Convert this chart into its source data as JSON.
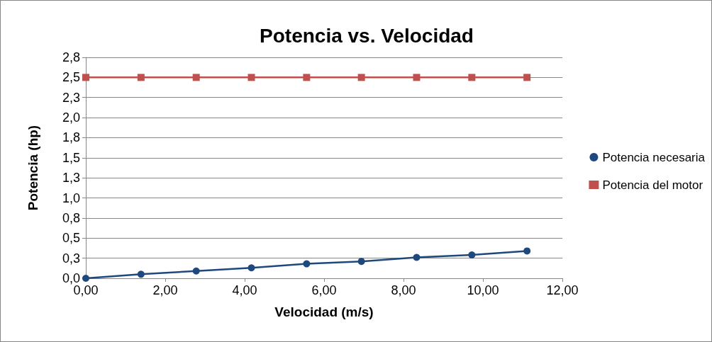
{
  "chart_data": {
    "type": "line",
    "title": "Potencia vs. Velocidad",
    "xlabel": "Velocidad (m/s)",
    "ylabel": "Potencia (hp)",
    "x": [
      0,
      1.39,
      2.78,
      4.17,
      5.56,
      6.94,
      8.33,
      9.72,
      11.11
    ],
    "series": [
      {
        "name": "Potencia necesaria",
        "color": "#1f497d",
        "marker": "circle",
        "values": [
          0,
          0.05,
          0.09,
          0.13,
          0.18,
          0.21,
          0.26,
          0.29,
          0.34
        ]
      },
      {
        "name": "Potencia del motor",
        "color": "#c0504d",
        "marker": "square",
        "values": [
          2.5,
          2.5,
          2.5,
          2.5,
          2.5,
          2.5,
          2.5,
          2.5,
          2.5
        ]
      }
    ],
    "xlim": [
      0,
      12
    ],
    "xticks": [
      {
        "value": 0,
        "label": "0,00"
      },
      {
        "value": 2,
        "label": "2,00"
      },
      {
        "value": 4,
        "label": "4,00"
      },
      {
        "value": 6,
        "label": "6,00"
      },
      {
        "value": 8,
        "label": "8,00"
      },
      {
        "value": 10,
        "label": "10,00"
      },
      {
        "value": 12,
        "label": "12,00"
      }
    ],
    "ylim": [
      0,
      2.75
    ],
    "yticks": [
      {
        "value": 0,
        "label": "0,0"
      },
      {
        "value": 0.25,
        "label": "0,3"
      },
      {
        "value": 0.5,
        "label": "0,5"
      },
      {
        "value": 0.75,
        "label": "0,8"
      },
      {
        "value": 1,
        "label": "1,0"
      },
      {
        "value": 1.25,
        "label": "1,3"
      },
      {
        "value": 1.5,
        "label": "1,5"
      },
      {
        "value": 1.75,
        "label": "1,8"
      },
      {
        "value": 2,
        "label": "2,0"
      },
      {
        "value": 2.25,
        "label": "2,3"
      },
      {
        "value": 2.5,
        "label": "2,5"
      },
      {
        "value": 2.75,
        "label": "2,8"
      }
    ],
    "grid": "y",
    "legend": "right",
    "line_style": "solid"
  }
}
